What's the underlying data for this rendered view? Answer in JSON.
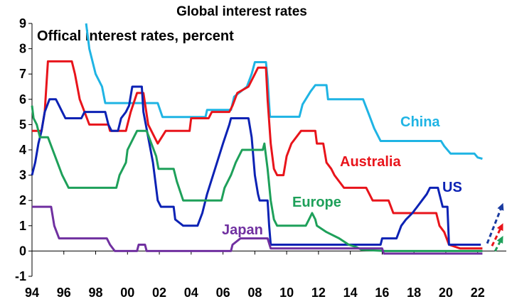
{
  "chart_data": {
    "type": "line",
    "title": "Global interest rates",
    "subtitle": "Offical interest rates, percent",
    "xlabel": "",
    "ylabel": "",
    "xlim": [
      1994,
      2023.8
    ],
    "ylim": [
      -1,
      9
    ],
    "x_ticks": [
      1994,
      1996,
      1998,
      2000,
      2002,
      2004,
      2006,
      2008,
      2010,
      2012,
      2014,
      2016,
      2018,
      2020,
      2022
    ],
    "x_tick_labels": [
      "94",
      "96",
      "98",
      "00",
      "02",
      "04",
      "06",
      "08",
      "10",
      "12",
      "14",
      "16",
      "18",
      "20",
      "22"
    ],
    "y_ticks": [
      -1,
      0,
      1,
      2,
      3,
      4,
      5,
      6,
      7,
      8,
      9
    ],
    "y_tick_labels": [
      "-1",
      "0",
      "1",
      "2",
      "3",
      "4",
      "5",
      "6",
      "7",
      "8",
      "9"
    ],
    "grid": false,
    "legend": "none",
    "series": [
      {
        "name": "China",
        "color": "#1fb4e4",
        "points": [
          [
            1997.4,
            9.0
          ],
          [
            1997.6,
            8.0
          ],
          [
            1998.0,
            7.0
          ],
          [
            1998.4,
            6.5
          ],
          [
            1998.6,
            5.85
          ],
          [
            1999.5,
            5.85
          ],
          [
            2001.9,
            5.85
          ],
          [
            2002.2,
            5.3
          ],
          [
            2004.9,
            5.3
          ],
          [
            2005.0,
            5.58
          ],
          [
            2006.5,
            5.58
          ],
          [
            2006.7,
            6.1
          ],
          [
            2007.5,
            6.5
          ],
          [
            2007.8,
            7.0
          ],
          [
            2008.0,
            7.47
          ],
          [
            2008.7,
            7.47
          ],
          [
            2008.8,
            6.8
          ],
          [
            2008.95,
            5.31
          ],
          [
            2010.8,
            5.31
          ],
          [
            2011.0,
            5.8
          ],
          [
            2011.5,
            6.31
          ],
          [
            2011.8,
            6.56
          ],
          [
            2012.5,
            6.56
          ],
          [
            2012.6,
            6.0
          ],
          [
            2014.8,
            6.0
          ],
          [
            2015.2,
            5.35
          ],
          [
            2015.5,
            4.85
          ],
          [
            2015.9,
            4.35
          ],
          [
            2019.7,
            4.35
          ],
          [
            2019.9,
            4.15
          ],
          [
            2020.3,
            3.85
          ],
          [
            2021.8,
            3.85
          ],
          [
            2022.0,
            3.7
          ],
          [
            2022.3,
            3.65
          ]
        ]
      },
      {
        "name": "Australia",
        "color": "#e8141b",
        "points": [
          [
            1994.0,
            4.75
          ],
          [
            1994.6,
            4.75
          ],
          [
            1994.8,
            5.5
          ],
          [
            1995.0,
            7.5
          ],
          [
            1996.5,
            7.5
          ],
          [
            1996.7,
            7.0
          ],
          [
            1997.0,
            6.0
          ],
          [
            1997.3,
            5.5
          ],
          [
            1997.6,
            5.0
          ],
          [
            1998.8,
            5.0
          ],
          [
            1998.9,
            4.75
          ],
          [
            1999.9,
            4.75
          ],
          [
            2000.0,
            5.0
          ],
          [
            2000.2,
            5.5
          ],
          [
            2000.6,
            6.25
          ],
          [
            2001.0,
            6.25
          ],
          [
            2001.3,
            5.0
          ],
          [
            2001.9,
            4.25
          ],
          [
            2002.4,
            4.75
          ],
          [
            2003.9,
            4.75
          ],
          [
            2004.0,
            5.25
          ],
          [
            2005.1,
            5.25
          ],
          [
            2005.3,
            5.5
          ],
          [
            2006.4,
            5.5
          ],
          [
            2006.6,
            5.75
          ],
          [
            2006.9,
            6.25
          ],
          [
            2007.6,
            6.5
          ],
          [
            2008.0,
            7.0
          ],
          [
            2008.2,
            7.25
          ],
          [
            2008.7,
            7.25
          ],
          [
            2008.8,
            6.0
          ],
          [
            2009.0,
            4.25
          ],
          [
            2009.2,
            3.25
          ],
          [
            2009.4,
            3.0
          ],
          [
            2009.8,
            3.0
          ],
          [
            2010.0,
            3.75
          ],
          [
            2010.3,
            4.25
          ],
          [
            2010.9,
            4.75
          ],
          [
            2011.8,
            4.75
          ],
          [
            2011.9,
            4.25
          ],
          [
            2012.3,
            4.25
          ],
          [
            2012.5,
            3.5
          ],
          [
            2012.8,
            3.25
          ],
          [
            2013.0,
            3.0
          ],
          [
            2013.3,
            2.75
          ],
          [
            2013.6,
            2.5
          ],
          [
            2015.0,
            2.5
          ],
          [
            2015.2,
            2.25
          ],
          [
            2015.4,
            2.0
          ],
          [
            2016.4,
            2.0
          ],
          [
            2016.7,
            1.5
          ],
          [
            2019.4,
            1.5
          ],
          [
            2019.6,
            1.0
          ],
          [
            2019.9,
            0.75
          ],
          [
            2020.2,
            0.25
          ],
          [
            2020.9,
            0.1
          ],
          [
            2022.3,
            0.1
          ]
        ]
      },
      {
        "name": "US",
        "color": "#0c22b4",
        "points": [
          [
            1994.0,
            3.0
          ],
          [
            1994.2,
            3.5
          ],
          [
            1994.4,
            4.25
          ],
          [
            1994.6,
            4.75
          ],
          [
            1994.8,
            5.5
          ],
          [
            1995.1,
            6.0
          ],
          [
            1995.5,
            6.0
          ],
          [
            1995.7,
            5.75
          ],
          [
            1995.9,
            5.5
          ],
          [
            1996.1,
            5.25
          ],
          [
            1997.1,
            5.25
          ],
          [
            1997.3,
            5.5
          ],
          [
            1998.6,
            5.5
          ],
          [
            1998.8,
            5.0
          ],
          [
            1999.0,
            4.75
          ],
          [
            1999.4,
            4.75
          ],
          [
            1999.6,
            5.25
          ],
          [
            1999.9,
            5.5
          ],
          [
            2000.1,
            5.75
          ],
          [
            2000.3,
            6.5
          ],
          [
            2000.9,
            6.5
          ],
          [
            2001.0,
            5.5
          ],
          [
            2001.3,
            4.5
          ],
          [
            2001.6,
            3.5
          ],
          [
            2001.9,
            2.0
          ],
          [
            2002.1,
            1.75
          ],
          [
            2002.9,
            1.75
          ],
          [
            2003.0,
            1.25
          ],
          [
            2003.5,
            1.0
          ],
          [
            2004.4,
            1.0
          ],
          [
            2004.7,
            1.5
          ],
          [
            2005.0,
            2.25
          ],
          [
            2005.5,
            3.25
          ],
          [
            2006.0,
            4.25
          ],
          [
            2006.4,
            5.0
          ],
          [
            2006.5,
            5.25
          ],
          [
            2007.6,
            5.25
          ],
          [
            2007.8,
            4.5
          ],
          [
            2008.0,
            3.0
          ],
          [
            2008.2,
            2.25
          ],
          [
            2008.3,
            2.0
          ],
          [
            2008.8,
            2.0
          ],
          [
            2008.9,
            1.0
          ],
          [
            2009.0,
            0.25
          ],
          [
            2015.9,
            0.25
          ],
          [
            2016.0,
            0.5
          ],
          [
            2016.9,
            0.5
          ],
          [
            2017.2,
            1.0
          ],
          [
            2017.5,
            1.25
          ],
          [
            2017.9,
            1.5
          ],
          [
            2018.2,
            1.75
          ],
          [
            2018.5,
            2.0
          ],
          [
            2018.8,
            2.25
          ],
          [
            2019.0,
            2.5
          ],
          [
            2019.5,
            2.5
          ],
          [
            2019.6,
            2.25
          ],
          [
            2019.8,
            1.75
          ],
          [
            2020.1,
            1.75
          ],
          [
            2020.2,
            0.25
          ],
          [
            2022.2,
            0.25
          ]
        ]
      },
      {
        "name": "Europe",
        "color": "#1ea05a",
        "points": [
          [
            1994.0,
            5.75
          ],
          [
            1994.1,
            5.25
          ],
          [
            1994.3,
            5.0
          ],
          [
            1994.5,
            4.5
          ],
          [
            1995.0,
            4.5
          ],
          [
            1995.3,
            4.0
          ],
          [
            1995.6,
            3.5
          ],
          [
            1995.9,
            3.0
          ],
          [
            1996.3,
            2.5
          ],
          [
            1999.3,
            2.5
          ],
          [
            1999.5,
            3.0
          ],
          [
            1999.9,
            3.5
          ],
          [
            2000.0,
            4.0
          ],
          [
            2000.4,
            4.5
          ],
          [
            2000.6,
            4.75
          ],
          [
            2001.2,
            4.75
          ],
          [
            2001.5,
            4.25
          ],
          [
            2001.8,
            3.75
          ],
          [
            2001.95,
            3.25
          ],
          [
            2002.9,
            3.25
          ],
          [
            2003.1,
            2.75
          ],
          [
            2003.5,
            2.0
          ],
          [
            2005.9,
            2.0
          ],
          [
            2006.1,
            2.5
          ],
          [
            2006.5,
            3.0
          ],
          [
            2006.8,
            3.5
          ],
          [
            2007.2,
            4.0
          ],
          [
            2008.5,
            4.0
          ],
          [
            2008.6,
            4.25
          ],
          [
            2008.8,
            3.25
          ],
          [
            2009.0,
            2.0
          ],
          [
            2009.2,
            1.25
          ],
          [
            2009.4,
            1.0
          ],
          [
            2011.2,
            1.0
          ],
          [
            2011.4,
            1.25
          ],
          [
            2011.6,
            1.5
          ],
          [
            2011.8,
            1.25
          ],
          [
            2011.9,
            1.0
          ],
          [
            2012.5,
            0.75
          ],
          [
            2013.3,
            0.5
          ],
          [
            2013.9,
            0.25
          ],
          [
            2014.4,
            0.15
          ],
          [
            2014.7,
            0.05
          ],
          [
            2016.2,
            0.0
          ],
          [
            2022.3,
            0.0
          ]
        ]
      },
      {
        "name": "Japan",
        "color": "#7030a0",
        "points": [
          [
            1994.0,
            1.75
          ],
          [
            1995.2,
            1.75
          ],
          [
            1995.4,
            1.0
          ],
          [
            1995.7,
            0.5
          ],
          [
            1998.7,
            0.5
          ],
          [
            1998.9,
            0.25
          ],
          [
            1999.2,
            0.0
          ],
          [
            2000.6,
            0.0
          ],
          [
            2000.7,
            0.25
          ],
          [
            2001.1,
            0.25
          ],
          [
            2001.2,
            0.0
          ],
          [
            2006.5,
            0.0
          ],
          [
            2006.6,
            0.25
          ],
          [
            2007.1,
            0.5
          ],
          [
            2008.8,
            0.5
          ],
          [
            2008.9,
            0.3
          ],
          [
            2009.0,
            0.1
          ],
          [
            2016.0,
            0.1
          ],
          [
            2016.1,
            -0.1
          ],
          [
            2022.3,
            -0.1
          ]
        ]
      }
    ],
    "annotations": {
      "China": "China",
      "Australia": "Australia",
      "US": "US",
      "Europe": "Europe",
      "Japan": "Japan"
    },
    "forecast_arrows": [
      {
        "series": "US",
        "color": "#1a3aa0",
        "from": [
          2022.6,
          0.3
        ],
        "to": [
          2023.6,
          1.9
        ]
      },
      {
        "series": "Australia",
        "color": "#e8141b",
        "from": [
          2022.9,
          0.2
        ],
        "to": [
          2023.6,
          1.1
        ]
      },
      {
        "series": "Europe",
        "color": "#1ea05a",
        "from": [
          2023.1,
          0.0
        ],
        "to": [
          2023.6,
          0.6
        ]
      }
    ]
  }
}
